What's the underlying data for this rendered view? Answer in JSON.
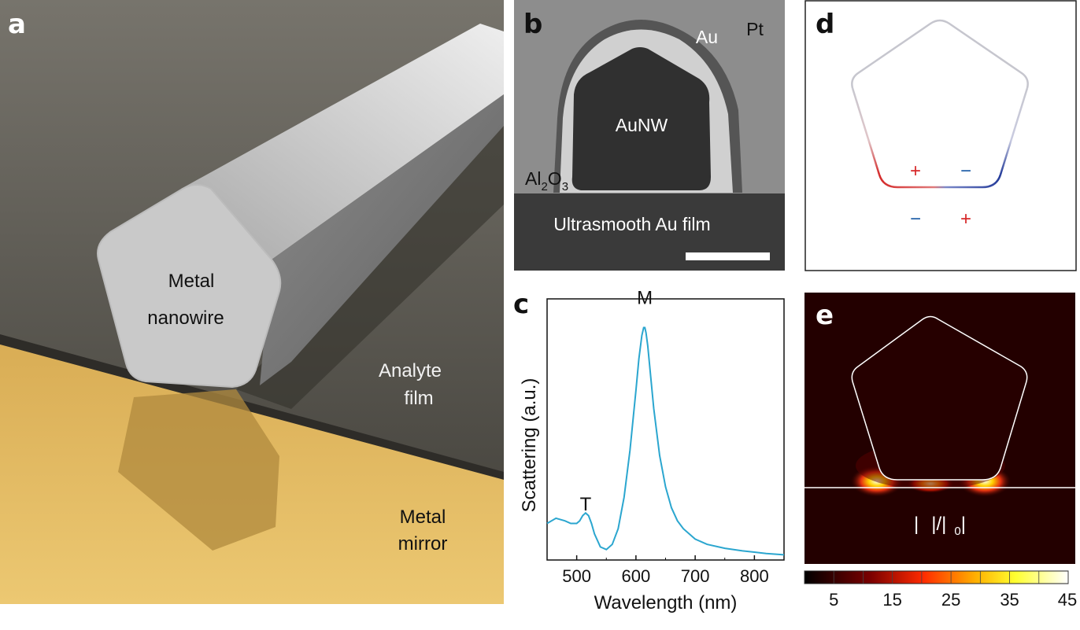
{
  "panels": {
    "a": {
      "label": "a",
      "wire_label_1": "Metal",
      "wire_label_2": "nanowire",
      "film_label_1": "Analyte",
      "film_label_2": "film",
      "mirror_label_1": "Metal",
      "mirror_label_2": "mirror"
    },
    "b": {
      "label": "b",
      "au": "Au",
      "pt": "Pt",
      "core": "AuNW",
      "oxide_main": "Al",
      "oxide_sub1": "2",
      "oxide_mid": "O",
      "oxide_sub2": "3",
      "film": "Ultrasmooth Au film"
    },
    "c": {
      "label": "c"
    },
    "d": {
      "label": "d",
      "plus_top": "+",
      "minus_top": "−",
      "minus_bottom": "−",
      "plus_bottom": "+"
    },
    "e": {
      "label": "e",
      "field_label": "|  |/|  0|",
      "field_1": "|",
      "field_2": "|/|",
      "field_3": "0",
      "field_4": "|"
    }
  },
  "colors": {
    "curve": "#2ba6cf",
    "plus": "#d62728",
    "minus": "#1f5fa8",
    "gold": "#e2b75a",
    "wire": "#cfcfcf"
  },
  "chart_data": {
    "type": "line",
    "title": "",
    "xlabel": "Wavelength (nm)",
    "ylabel": "Scattering (a.u.)",
    "xlim": [
      450,
      850
    ],
    "ylim": [
      0,
      1.0
    ],
    "xticks": [
      "500",
      "600",
      "700",
      "800"
    ],
    "xtick_values": [
      500,
      600,
      700,
      800
    ],
    "annotations": [
      {
        "text": "T",
        "x": 515,
        "y": 0.19
      },
      {
        "text": "M",
        "x": 615,
        "y": 0.98
      }
    ],
    "series": [
      {
        "name": "Scattering",
        "x": [
          450,
          465,
          480,
          490,
          500,
          505,
          510,
          515,
          520,
          525,
          530,
          540,
          550,
          560,
          570,
          580,
          590,
          600,
          605,
          610,
          613,
          615,
          617,
          620,
          625,
          630,
          640,
          650,
          660,
          670,
          680,
          700,
          720,
          750,
          780,
          800,
          820,
          850
        ],
        "y": [
          0.14,
          0.16,
          0.15,
          0.14,
          0.14,
          0.15,
          0.17,
          0.18,
          0.17,
          0.14,
          0.1,
          0.05,
          0.04,
          0.06,
          0.12,
          0.24,
          0.42,
          0.65,
          0.77,
          0.86,
          0.89,
          0.89,
          0.87,
          0.82,
          0.7,
          0.58,
          0.4,
          0.28,
          0.2,
          0.15,
          0.12,
          0.08,
          0.06,
          0.045,
          0.035,
          0.03,
          0.025,
          0.02
        ]
      }
    ]
  },
  "colorbar": {
    "ticks": [
      "5",
      "15",
      "25",
      "35",
      "45"
    ],
    "tick_values": [
      5,
      15,
      25,
      35,
      45
    ],
    "range": [
      0,
      45
    ]
  }
}
